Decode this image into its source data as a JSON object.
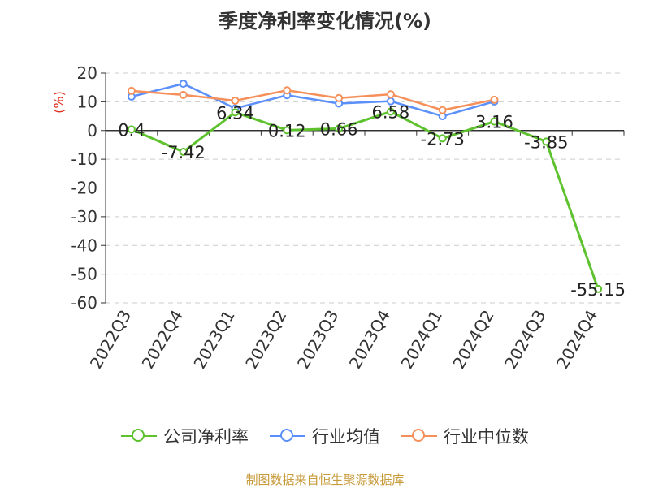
{
  "title": "季度净利率变化情况(%)",
  "source": "制图数据来自恒生聚源数据库",
  "colors": {
    "company": "#5ec22f",
    "industry_avg": "#5b8ff9",
    "industry_median": "#f6905b",
    "axis_label_red": "#e0301e",
    "source_text": "#c79a3a"
  },
  "chart_data": {
    "type": "line",
    "title": "季度净利率变化情况(%)",
    "ylabel": "(%)",
    "ylim": [
      -60,
      20
    ],
    "yticks": [
      20,
      10,
      0,
      -10,
      -20,
      -30,
      -40,
      -50,
      -60
    ],
    "grid": true,
    "legend_position": "bottom",
    "categories": [
      "2022Q3",
      "2022Q4",
      "2023Q1",
      "2023Q2",
      "2023Q3",
      "2023Q4",
      "2024Q1",
      "2024Q2",
      "2024Q3",
      "2024Q4"
    ],
    "series": [
      {
        "name": "公司净利率",
        "key": "company",
        "values": [
          0.4,
          -7.42,
          6.34,
          0.12,
          0.66,
          6.58,
          -2.73,
          3.16,
          -3.85,
          -55.15
        ],
        "labels": [
          "0.4",
          "-7.42",
          "6.34",
          "0.12",
          "0.66",
          "6.58",
          "-2.73",
          "3.16",
          "-3.85",
          "-55.15"
        ]
      },
      {
        "name": "行业均值",
        "key": "industry_avg",
        "values": [
          11.8,
          16.3,
          7.7,
          12.3,
          9.4,
          10.2,
          5.0,
          10.1,
          null,
          null
        ]
      },
      {
        "name": "行业中位数",
        "key": "industry_median",
        "values": [
          13.8,
          12.4,
          10.4,
          14.0,
          11.3,
          12.6,
          7.1,
          10.7,
          null,
          null
        ]
      }
    ]
  }
}
